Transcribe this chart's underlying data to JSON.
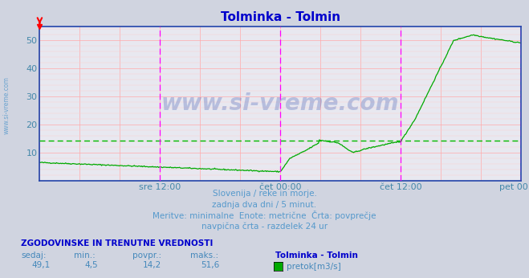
{
  "title": "Tolminka - Tolmin",
  "title_color": "#0000cc",
  "bg_color": "#d0d4e0",
  "plot_bg_color": "#e8e8f0",
  "grid_color_major": "#ffaaaa",
  "grid_color_minor": "#ffcccc",
  "line_color": "#00aa00",
  "avg_line_color": "#00bb00",
  "avg_value": 14.2,
  "ylim": [
    0,
    55
  ],
  "yticks": [
    10,
    20,
    30,
    40,
    50
  ],
  "tick_label_color": "#4488aa",
  "xtick_labels": [
    "sre 12:00",
    "čet 00:00",
    "čet 12:00",
    "pet 00:00"
  ],
  "xtick_positions": [
    0.25,
    0.5,
    0.75,
    1.0
  ],
  "vline_positions": [
    0.25,
    0.5,
    0.75,
    1.0
  ],
  "vline_color": "#ff00ff",
  "subtitle_lines": [
    "Slovenija / reke in morje.",
    "zadnja dva dni / 5 minut.",
    "Meritve: minimalne  Enote: metrične  Črta: povprečje",
    "navpična črta - razdelek 24 ur"
  ],
  "subtitle_color": "#5599cc",
  "footer_bold": "ZGODOVINSKE IN TRENUTNE VREDNOSTI",
  "footer_labels": [
    "sedaj:",
    "min.:",
    "povpr.:",
    "maks.:"
  ],
  "footer_values": [
    "49,1",
    "4,5",
    "14,2",
    "51,6"
  ],
  "footer_station": "Tolminka - Tolmin",
  "footer_legend_label": "pretok[m3/s]",
  "footer_color": "#4488bb",
  "footer_bold_color": "#0000cc",
  "watermark": "www.si-vreme.com",
  "watermark_color": "#2244aa",
  "border_color": "#2244aa",
  "n_points": 576
}
